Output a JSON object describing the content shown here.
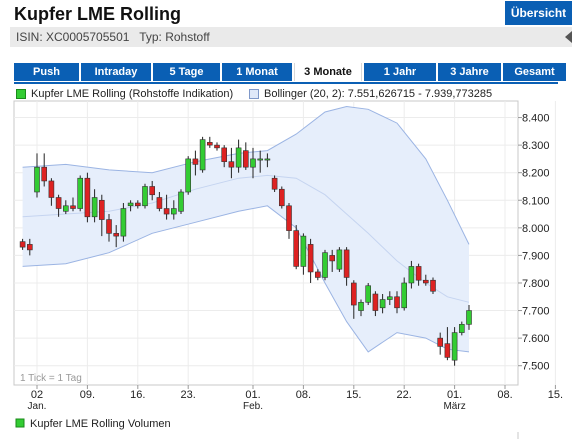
{
  "header": {
    "title": "Kupfer LME Rolling",
    "overview_button": "Übersicht",
    "isin_line": "ISIN: XC0005705501   Typ: Rohstoff"
  },
  "tabs": [
    {
      "label": "Push",
      "active": false
    },
    {
      "label": "Intraday",
      "active": false
    },
    {
      "label": "5 Tage",
      "active": false
    },
    {
      "label": "1 Monat",
      "active": false
    },
    {
      "label": "3 Monate",
      "active": true
    },
    {
      "label": "1 Jahr",
      "active": false
    },
    {
      "label": "3 Jahre",
      "active": false
    },
    {
      "label": "Gesamt",
      "active": false
    }
  ],
  "legend": {
    "price": "Kupfer LME Rolling (Rohstoffe Indikation)",
    "bollinger": "Bollinger (20, 2): 7.551,626715 - 7.939,773285",
    "volume": "Kupfer LME Rolling Volumen"
  },
  "chart_note": "1 Tick = 1 Tag",
  "colors": {
    "up": "#33cc33",
    "down": "#dd2222",
    "band_fill": "#e6eefb",
    "band_line": "#9bb4e3",
    "accent": "#0a5fb4"
  },
  "chart_data": {
    "type": "candlestick",
    "ylim": [
      7.43,
      8.46
    ],
    "yticks": [
      8.4,
      8.3,
      8.2,
      8.1,
      8.0,
      7.9,
      7.8,
      7.7,
      7.6,
      7.5
    ],
    "ytick_labels": [
      "8.400",
      "8.300",
      "8.200",
      "8.100",
      "8.000",
      "7.900",
      "7.800",
      "7.700",
      "7.600",
      "7.500"
    ],
    "xticks": [
      {
        "day": 0,
        "label": "02",
        "sub": "Jan."
      },
      {
        "day": 7,
        "label": "09.",
        "sub": ""
      },
      {
        "day": 14,
        "label": "16.",
        "sub": ""
      },
      {
        "day": 21,
        "label": "23.",
        "sub": ""
      },
      {
        "day": 30,
        "label": "01.",
        "sub": "Feb."
      },
      {
        "day": 37,
        "label": "08.",
        "sub": ""
      },
      {
        "day": 44,
        "label": "15.",
        "sub": ""
      },
      {
        "day": 51,
        "label": "22.",
        "sub": ""
      },
      {
        "day": 58,
        "label": "01.",
        "sub": "März"
      },
      {
        "day": 65,
        "label": "08.",
        "sub": ""
      },
      {
        "day": 72,
        "label": "15.",
        "sub": ""
      }
    ],
    "candles": [
      {
        "day": -2,
        "o": 7.95,
        "h": 7.96,
        "l": 7.92,
        "c": 7.93
      },
      {
        "day": -1,
        "o": 7.94,
        "h": 7.96,
        "l": 7.9,
        "c": 7.92
      },
      {
        "day": 0,
        "o": 8.13,
        "h": 8.27,
        "l": 8.11,
        "c": 8.22
      },
      {
        "day": 1,
        "o": 8.22,
        "h": 8.27,
        "l": 8.15,
        "c": 8.17
      },
      {
        "day": 2,
        "o": 8.17,
        "h": 8.18,
        "l": 8.08,
        "c": 8.11
      },
      {
        "day": 3,
        "o": 8.11,
        "h": 8.12,
        "l": 8.04,
        "c": 8.07
      },
      {
        "day": 4,
        "o": 8.06,
        "h": 8.1,
        "l": 8.05,
        "c": 8.08
      },
      {
        "day": 5,
        "o": 8.08,
        "h": 8.11,
        "l": 8.06,
        "c": 8.07
      },
      {
        "day": 6,
        "o": 8.07,
        "h": 8.19,
        "l": 8.06,
        "c": 8.18
      },
      {
        "day": 7,
        "o": 8.18,
        "h": 8.2,
        "l": 8.02,
        "c": 8.04
      },
      {
        "day": 8,
        "o": 8.04,
        "h": 8.14,
        "l": 8.02,
        "c": 8.11
      },
      {
        "day": 9,
        "o": 8.1,
        "h": 8.12,
        "l": 7.97,
        "c": 8.03
      },
      {
        "day": 10,
        "o": 8.03,
        "h": 8.05,
        "l": 7.95,
        "c": 7.98
      },
      {
        "day": 11,
        "o": 7.98,
        "h": 8.01,
        "l": 7.93,
        "c": 7.97
      },
      {
        "day": 12,
        "o": 7.97,
        "h": 8.09,
        "l": 7.95,
        "c": 8.07
      },
      {
        "day": 13,
        "o": 8.08,
        "h": 8.1,
        "l": 8.06,
        "c": 8.09
      },
      {
        "day": 14,
        "o": 8.09,
        "h": 8.1,
        "l": 8.07,
        "c": 8.08
      },
      {
        "day": 15,
        "o": 8.08,
        "h": 8.16,
        "l": 8.07,
        "c": 8.15
      },
      {
        "day": 16,
        "o": 8.15,
        "h": 8.17,
        "l": 8.1,
        "c": 8.12
      },
      {
        "day": 17,
        "o": 8.11,
        "h": 8.13,
        "l": 8.06,
        "c": 8.07
      },
      {
        "day": 18,
        "o": 8.07,
        "h": 8.12,
        "l": 8.03,
        "c": 8.05
      },
      {
        "day": 19,
        "o": 8.05,
        "h": 8.1,
        "l": 8.03,
        "c": 8.07
      },
      {
        "day": 20,
        "o": 8.06,
        "h": 8.14,
        "l": 8.05,
        "c": 8.13
      },
      {
        "day": 21,
        "o": 8.13,
        "h": 8.26,
        "l": 8.12,
        "c": 8.25
      },
      {
        "day": 22,
        "o": 8.25,
        "h": 8.28,
        "l": 8.19,
        "c": 8.23
      },
      {
        "day": 23,
        "o": 8.21,
        "h": 8.33,
        "l": 8.2,
        "c": 8.32
      },
      {
        "day": 24,
        "o": 8.31,
        "h": 8.33,
        "l": 8.29,
        "c": 8.3
      },
      {
        "day": 25,
        "o": 8.3,
        "h": 8.31,
        "l": 8.28,
        "c": 8.29
      },
      {
        "day": 26,
        "o": 8.29,
        "h": 8.3,
        "l": 8.22,
        "c": 8.24
      },
      {
        "day": 27,
        "o": 8.24,
        "h": 8.29,
        "l": 8.18,
        "c": 8.22
      },
      {
        "day": 28,
        "o": 8.22,
        "h": 8.32,
        "l": 8.2,
        "c": 8.29
      },
      {
        "day": 29,
        "o": 8.28,
        "h": 8.31,
        "l": 8.21,
        "c": 8.22
      },
      {
        "day": 30,
        "o": 8.22,
        "h": 8.29,
        "l": 8.18,
        "c": 8.25
      },
      {
        "day": 31,
        "o": 8.25,
        "h": 8.28,
        "l": 8.2,
        "c": 8.25
      },
      {
        "day": 32,
        "o": 8.25,
        "h": 8.27,
        "l": 8.22,
        "c": 8.25
      },
      {
        "day": 33,
        "o": 8.18,
        "h": 8.19,
        "l": 8.13,
        "c": 8.14
      },
      {
        "day": 34,
        "o": 8.14,
        "h": 8.15,
        "l": 8.07,
        "c": 8.08
      },
      {
        "day": 35,
        "o": 8.08,
        "h": 8.09,
        "l": 7.96,
        "c": 7.99
      },
      {
        "day": 36,
        "o": 7.99,
        "h": 8.01,
        "l": 7.85,
        "c": 7.86
      },
      {
        "day": 37,
        "o": 7.86,
        "h": 7.98,
        "l": 7.83,
        "c": 7.97
      },
      {
        "day": 38,
        "o": 7.94,
        "h": 7.96,
        "l": 7.8,
        "c": 7.84
      },
      {
        "day": 39,
        "o": 7.84,
        "h": 7.85,
        "l": 7.81,
        "c": 7.82
      },
      {
        "day": 40,
        "o": 7.82,
        "h": 7.92,
        "l": 7.81,
        "c": 7.91
      },
      {
        "day": 41,
        "o": 7.9,
        "h": 7.92,
        "l": 7.84,
        "c": 7.88
      },
      {
        "day": 42,
        "o": 7.85,
        "h": 7.93,
        "l": 7.84,
        "c": 7.92
      },
      {
        "day": 43,
        "o": 7.92,
        "h": 7.93,
        "l": 7.79,
        "c": 7.82
      },
      {
        "day": 44,
        "o": 7.8,
        "h": 7.81,
        "l": 7.67,
        "c": 7.72
      },
      {
        "day": 45,
        "o": 7.7,
        "h": 7.74,
        "l": 7.68,
        "c": 7.73
      },
      {
        "day": 46,
        "o": 7.73,
        "h": 7.8,
        "l": 7.72,
        "c": 7.79
      },
      {
        "day": 47,
        "o": 7.76,
        "h": 7.77,
        "l": 7.68,
        "c": 7.7
      },
      {
        "day": 48,
        "o": 7.71,
        "h": 7.76,
        "l": 7.69,
        "c": 7.74
      },
      {
        "day": 49,
        "o": 7.74,
        "h": 7.77,
        "l": 7.72,
        "c": 7.75
      },
      {
        "day": 50,
        "o": 7.75,
        "h": 7.77,
        "l": 7.69,
        "c": 7.71
      },
      {
        "day": 51,
        "o": 7.71,
        "h": 7.82,
        "l": 7.7,
        "c": 7.8
      },
      {
        "day": 52,
        "o": 7.8,
        "h": 7.88,
        "l": 7.78,
        "c": 7.86
      },
      {
        "day": 53,
        "o": 7.86,
        "h": 7.87,
        "l": 7.79,
        "c": 7.81
      },
      {
        "day": 54,
        "o": 7.81,
        "h": 7.83,
        "l": 7.79,
        "c": 7.8
      },
      {
        "day": 55,
        "o": 7.81,
        "h": 7.82,
        "l": 7.76,
        "c": 7.77
      },
      {
        "day": 56,
        "o": 7.6,
        "h": 7.62,
        "l": 7.54,
        "c": 7.57
      },
      {
        "day": 57,
        "o": 7.58,
        "h": 7.64,
        "l": 7.52,
        "c": 7.53
      },
      {
        "day": 58,
        "o": 7.52,
        "h": 7.64,
        "l": 7.5,
        "c": 7.62
      },
      {
        "day": 59,
        "o": 7.62,
        "h": 7.66,
        "l": 7.61,
        "c": 7.65
      },
      {
        "day": 60,
        "o": 7.65,
        "h": 7.72,
        "l": 7.63,
        "c": 7.7
      }
    ],
    "bollinger_upper": [
      [
        -2,
        8.22
      ],
      [
        4,
        8.23
      ],
      [
        10,
        8.21
      ],
      [
        16,
        8.2
      ],
      [
        22,
        8.24
      ],
      [
        28,
        8.27
      ],
      [
        32,
        8.28
      ],
      [
        36,
        8.34
      ],
      [
        40,
        8.42
      ],
      [
        43,
        8.44
      ],
      [
        46,
        8.43
      ],
      [
        50,
        8.38
      ],
      [
        54,
        8.25
      ],
      [
        57,
        8.1
      ],
      [
        60,
        7.94
      ]
    ],
    "bollinger_mid": [
      [
        -2,
        8.04
      ],
      [
        4,
        8.05
      ],
      [
        10,
        8.06
      ],
      [
        16,
        8.09
      ],
      [
        22,
        8.14
      ],
      [
        28,
        8.18
      ],
      [
        32,
        8.19
      ],
      [
        36,
        8.18
      ],
      [
        40,
        8.12
      ],
      [
        43,
        8.05
      ],
      [
        46,
        7.98
      ],
      [
        50,
        7.88
      ],
      [
        54,
        7.8
      ],
      [
        57,
        7.75
      ],
      [
        60,
        7.73
      ]
    ],
    "bollinger_lower": [
      [
        -2,
        7.86
      ],
      [
        4,
        7.87
      ],
      [
        10,
        7.91
      ],
      [
        16,
        7.98
      ],
      [
        22,
        8.02
      ],
      [
        28,
        8.06
      ],
      [
        32,
        8.08
      ],
      [
        36,
        8.0
      ],
      [
        40,
        7.8
      ],
      [
        43,
        7.66
      ],
      [
        46,
        7.55
      ],
      [
        50,
        7.62
      ],
      [
        54,
        7.6
      ],
      [
        57,
        7.56
      ],
      [
        60,
        7.55
      ]
    ]
  }
}
